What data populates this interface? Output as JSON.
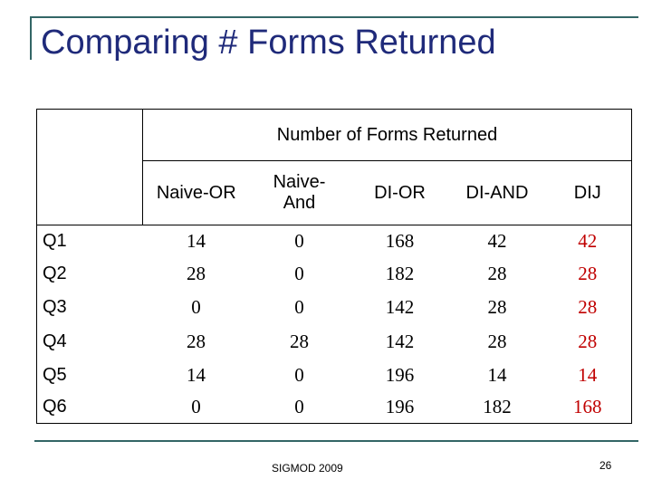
{
  "header": {
    "title": "Comparing # Forms Returned"
  },
  "table": {
    "group_header": "Number of Forms Returned",
    "columns": [
      "Naive-OR",
      "Naive-And",
      "DI-OR",
      "DI-AND",
      "DIJ"
    ],
    "rows": [
      [
        "Q1",
        14,
        0,
        168,
        42,
        42
      ],
      [
        "Q2",
        28,
        0,
        182,
        28,
        28
      ],
      [
        "Q3",
        0,
        0,
        142,
        28,
        28
      ],
      [
        "Q4",
        28,
        28,
        142,
        28,
        28
      ],
      [
        "Q5",
        14,
        0,
        196,
        14,
        14
      ],
      [
        "Q6",
        0,
        0,
        196,
        182,
        168
      ]
    ]
  },
  "footer": {
    "venue": "SIGMOD 2009",
    "page": "26"
  }
}
